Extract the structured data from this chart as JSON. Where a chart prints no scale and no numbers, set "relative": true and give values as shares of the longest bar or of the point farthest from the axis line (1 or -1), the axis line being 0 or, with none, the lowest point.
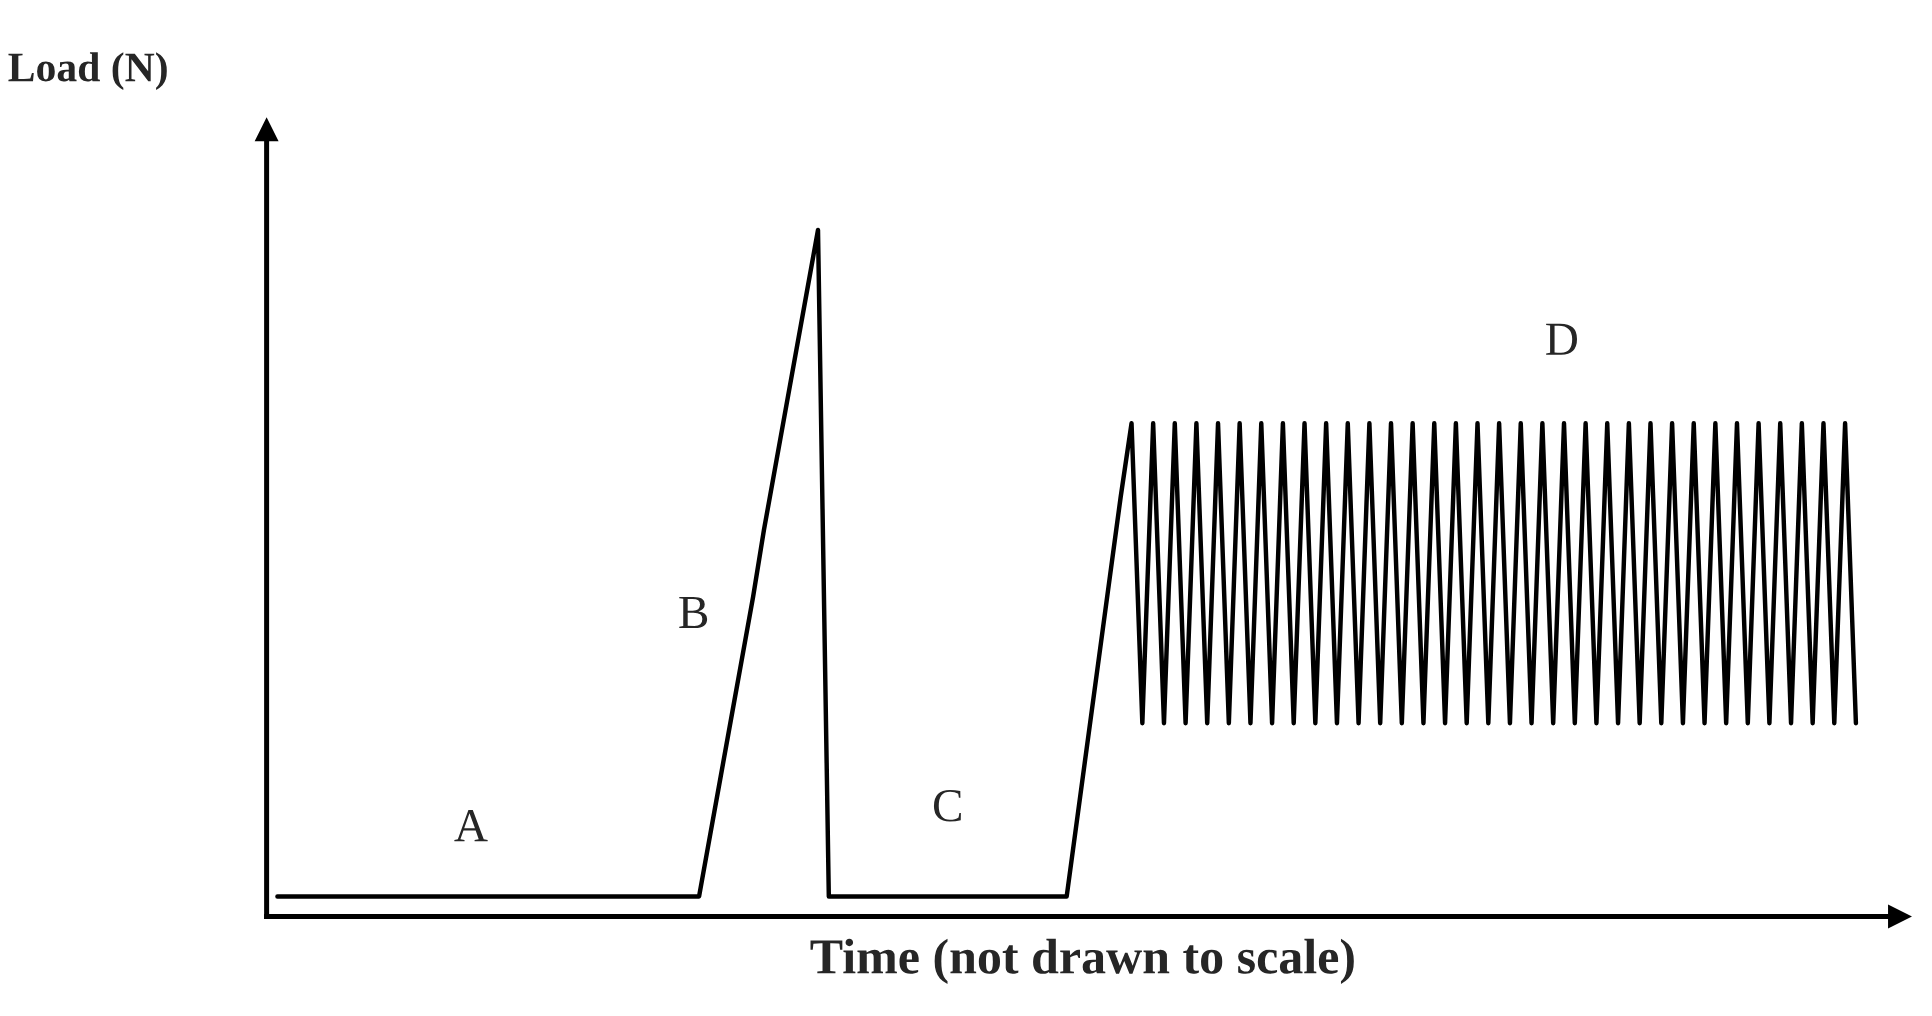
{
  "chart_data": {
    "type": "line",
    "relative": true,
    "ylabel": "Load (N)",
    "xlabel": "Time (not drawn to scale)",
    "categories": [
      null,
      null,
      null,
      null,
      null,
      null,
      null,
      null,
      null,
      null,
      null,
      null,
      null,
      null,
      null,
      null,
      null,
      null,
      null,
      null,
      null,
      null,
      null,
      null,
      null,
      null,
      null,
      null,
      null,
      null,
      null,
      null,
      null,
      null,
      null,
      null,
      null,
      null,
      null,
      null,
      null,
      null,
      null,
      null,
      null,
      null,
      null,
      null,
      null,
      null,
      null,
      null,
      null,
      null,
      null,
      null,
      null,
      null,
      null,
      null,
      null,
      null,
      null,
      null,
      null,
      null,
      null,
      null,
      null,
      null,
      null,
      null,
      null,
      null,
      null,
      null,
      null,
      null,
      null,
      null,
      null,
      null,
      null,
      null,
      null,
      null,
      null,
      null,
      null,
      null,
      null,
      null,
      null,
      null,
      null,
      null,
      null,
      null,
      null,
      null,
      null,
      null,
      null,
      null,
      null,
      null,
      null,
      null,
      null,
      null,
      null,
      null,
      null,
      null,
      null,
      null,
      null,
      null,
      null,
      null,
      null,
      null,
      null,
      null,
      null,
      null,
      null,
      null,
      null,
      null,
      null,
      null,
      null,
      null,
      null,
      null,
      null,
      null,
      null,
      null,
      null,
      null,
      null,
      null,
      null,
      null,
      null
    ],
    "series": [
      {
        "color": "#000000",
        "values": [
          0,
          0,
          0,
          0,
          0,
          0,
          0,
          0,
          0,
          0,
          0,
          0,
          0,
          0,
          0,
          0,
          0,
          0,
          0,
          0,
          0,
          0,
          0,
          0,
          0,
          0,
          0,
          0,
          0,
          0,
          0,
          0,
          0,
          0,
          0,
          0,
          0,
          0,
          0,
          0,
          0.09,
          0.18,
          0.27,
          0.36,
          0.45,
          0.55,
          0.64,
          0.73,
          0.82,
          0.91,
          1,
          0,
          0,
          0,
          0,
          0,
          0,
          0,
          0,
          0,
          0,
          0,
          0,
          0,
          0,
          0,
          0,
          0,
          0,
          0,
          0,
          0,
          0,
          0,
          0.12,
          0.24,
          0.36,
          0.48,
          0.6,
          0.71,
          0.26,
          0.71,
          0.26,
          0.71,
          0.26,
          0.71,
          0.26,
          0.71,
          0.26,
          0.71,
          0.26,
          0.71,
          0.26,
          0.71,
          0.26,
          0.71,
          0.26,
          0.71,
          0.26,
          0.71,
          0.26,
          0.71,
          0.26,
          0.71,
          0.26,
          0.71,
          0.26,
          0.71,
          0.26,
          0.71,
          0.26,
          0.71,
          0.26,
          0.71,
          0.26,
          0.71,
          0.26,
          0.71,
          0.26,
          0.71,
          0.26,
          0.71,
          0.26,
          0.71,
          0.26,
          0.71,
          0.26,
          0.71,
          0.26,
          0.71,
          0.26,
          0.71,
          0.26,
          0.71,
          0.26,
          0.71,
          0.26,
          0.71,
          0.26,
          0.71,
          0.26,
          0.71,
          0.26,
          0.71,
          0.26,
          0.71,
          0.26
        ]
      }
    ],
    "annotations": [
      "A",
      "B",
      "C",
      "D"
    ],
    "marker": "none",
    "line_style": "solid"
  }
}
